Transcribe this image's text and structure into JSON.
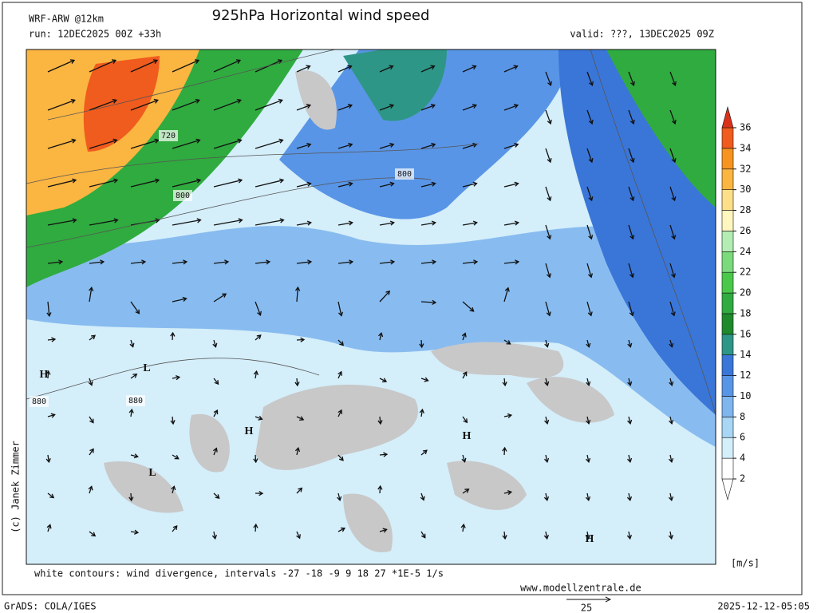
{
  "header": {
    "model": "WRF-ARW @12km",
    "title": "925hPa Horizontal wind speed",
    "run": "run: 12DEC2025 00Z +33h",
    "valid": "valid: ???, 13DEC2025 09Z"
  },
  "map": {
    "pressure_labels": [
      "720",
      "800",
      "800",
      "880",
      "880"
    ],
    "centers": [
      "H",
      "L",
      "L",
      "H",
      "H",
      "H"
    ]
  },
  "colorbar": {
    "unit": "[m/s]",
    "ticks": [
      2,
      4,
      6,
      8,
      10,
      12,
      14,
      16,
      18,
      20,
      22,
      24,
      26,
      28,
      30,
      32,
      34,
      36
    ],
    "colors": [
      "#ffffff",
      "#ffffff",
      "#d4eefa",
      "#a8d6f4",
      "#7fb6ee",
      "#5995e6",
      "#3a76d8",
      "#2e9686",
      "#1f8a2c",
      "#30ab3f",
      "#4ac84a",
      "#7bda7b",
      "#b3edb3",
      "#fff7bf",
      "#fddf8a",
      "#fbb541",
      "#f7941f",
      "#f05b1e",
      "#d9321b"
    ]
  },
  "footer": {
    "copyright": "(c) Janek Zimmer",
    "contours": "white contours: wind divergence, intervals -27 -18 -9 9 18 27 *1E-5 1/s",
    "website": "www.modellzentrale.de",
    "software": "GrADS: COLA/IGES",
    "timestamp": "2025-12-12-05:05",
    "arrow_scale": "25"
  }
}
